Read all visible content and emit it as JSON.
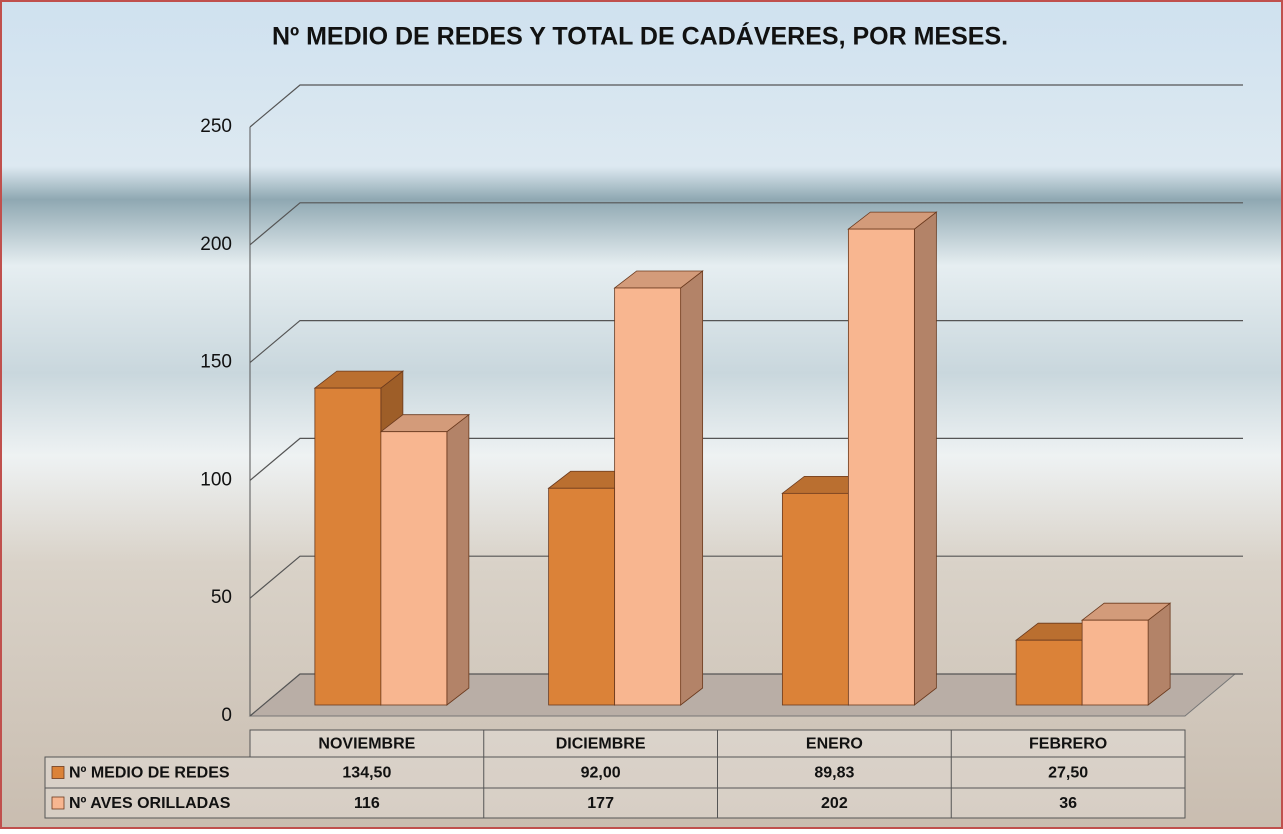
{
  "chart_data": {
    "type": "bar3d",
    "title": "Nº  MEDIO DE REDES Y TOTAL DE CADÁVERES, POR MESES.",
    "categories": [
      "NOVIEMBRE",
      "DICIEMBRE",
      "ENERO",
      "FEBRERO"
    ],
    "series": [
      {
        "name": "Nº MEDIO DE REDES",
        "color": "#db8238",
        "values": [
          134.5,
          92,
          89.83,
          27.5
        ],
        "value_labels": [
          "134,50",
          "92,00",
          "89,83",
          "27,50"
        ]
      },
      {
        "name": "Nº AVES ORILLADAS",
        "color": "#f8b690",
        "values": [
          116,
          177,
          202,
          36
        ]
      }
    ],
    "ylim": [
      0,
      250
    ],
    "yticks": [
      0,
      50,
      100,
      150,
      200,
      250
    ],
    "grid": true
  }
}
